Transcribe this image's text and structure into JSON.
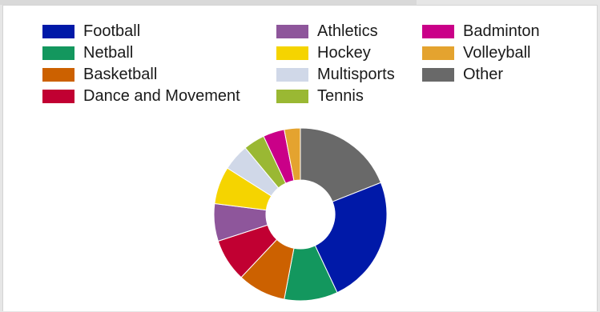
{
  "chart_data": {
    "type": "pie",
    "donut": true,
    "legend_placement": "top",
    "slices": [
      {
        "label": "Other",
        "value": 19,
        "color": "#696969"
      },
      {
        "label": "Football",
        "value": 24,
        "color": "#0019a8"
      },
      {
        "label": "Netball",
        "value": 10,
        "color": "#13975e"
      },
      {
        "label": "Basketball",
        "value": 9,
        "color": "#cc6100"
      },
      {
        "label": "Dance and Movement",
        "value": 8,
        "color": "#c10032"
      },
      {
        "label": "Athletics",
        "value": 7,
        "color": "#8e569b"
      },
      {
        "label": "Hockey",
        "value": 7,
        "color": "#f5d400"
      },
      {
        "label": "Multisports",
        "value": 5,
        "color": "#d0d8e8"
      },
      {
        "label": "Tennis",
        "value": 4,
        "color": "#9ab833"
      },
      {
        "label": "Badminton",
        "value": 4,
        "color": "#ca0088"
      },
      {
        "label": "Volleyball",
        "value": 3,
        "color": "#e4a32f"
      }
    ],
    "legend": [
      [
        "Football",
        "Netball",
        "Basketball",
        "Dance and Movement"
      ],
      [
        "Athletics",
        "Hockey",
        "Multisports",
        "Tennis"
      ],
      [
        "Badminton",
        "Volleyball",
        "Other"
      ]
    ]
  }
}
